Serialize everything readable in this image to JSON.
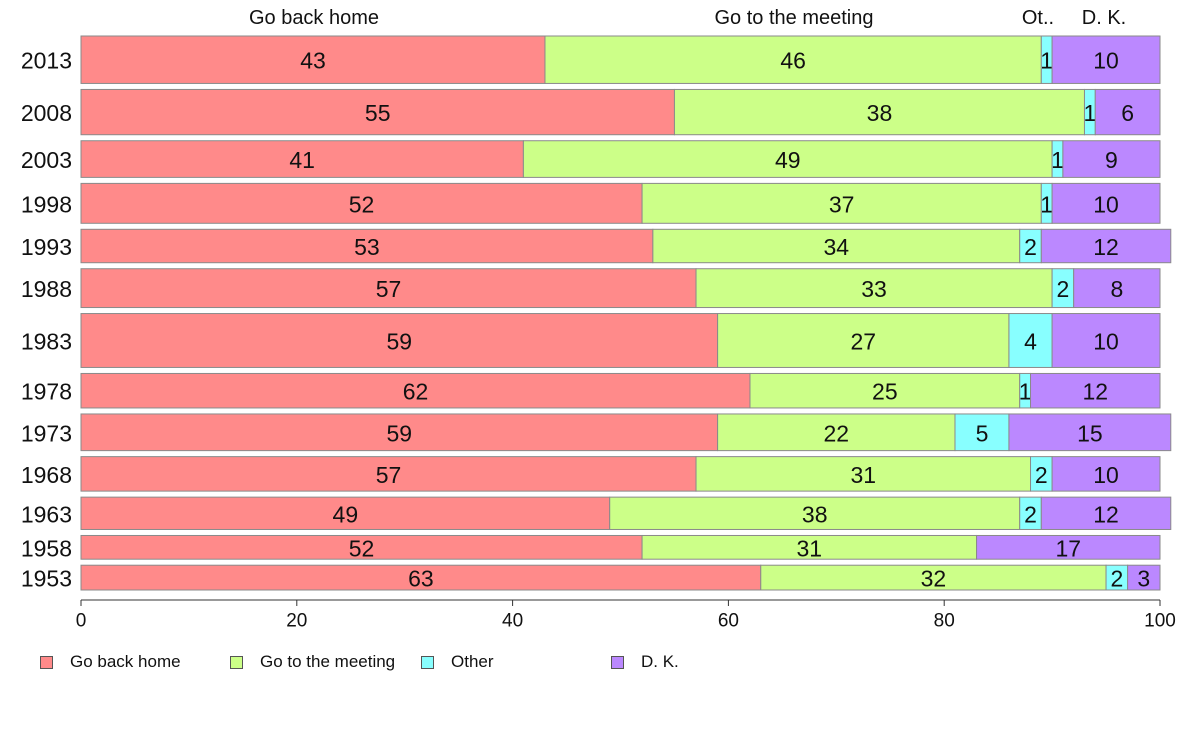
{
  "chart_data": {
    "type": "bar",
    "orientation": "horizontal",
    "stacked": true,
    "categories": [
      "2013",
      "2008",
      "2003",
      "1998",
      "1993",
      "1988",
      "1983",
      "1978",
      "1973",
      "1968",
      "1963",
      "1958",
      "1953"
    ],
    "series": [
      {
        "name": "Go back home",
        "color": "#ff8a8a",
        "values": [
          43,
          55,
          41,
          52,
          53,
          57,
          59,
          62,
          59,
          57,
          49,
          52,
          63
        ]
      },
      {
        "name": "Go to the meeting",
        "color": "#ccff88",
        "values": [
          46,
          38,
          49,
          37,
          34,
          33,
          27,
          25,
          22,
          31,
          38,
          31,
          32
        ]
      },
      {
        "name": "Other",
        "color": "#88ffff",
        "values": [
          1,
          1,
          1,
          1,
          2,
          2,
          4,
          1,
          5,
          2,
          2,
          0,
          2
        ]
      },
      {
        "name": "D. K.",
        "color": "#bb88ff",
        "values": [
          10,
          6,
          9,
          10,
          12,
          8,
          10,
          12,
          15,
          10,
          12,
          17,
          3
        ]
      }
    ],
    "row_weights": [
      44,
      42,
      34,
      37,
      31,
      36,
      50,
      32,
      34,
      32,
      30,
      22,
      23
    ],
    "top_labels": [
      "Go back home",
      "Go to the meeting",
      "Ot..",
      "D. K."
    ],
    "x_ticks": [
      0,
      20,
      40,
      60,
      80,
      100
    ],
    "xlim": [
      0,
      100
    ],
    "grid": false,
    "legend_position": "bottom-left"
  }
}
